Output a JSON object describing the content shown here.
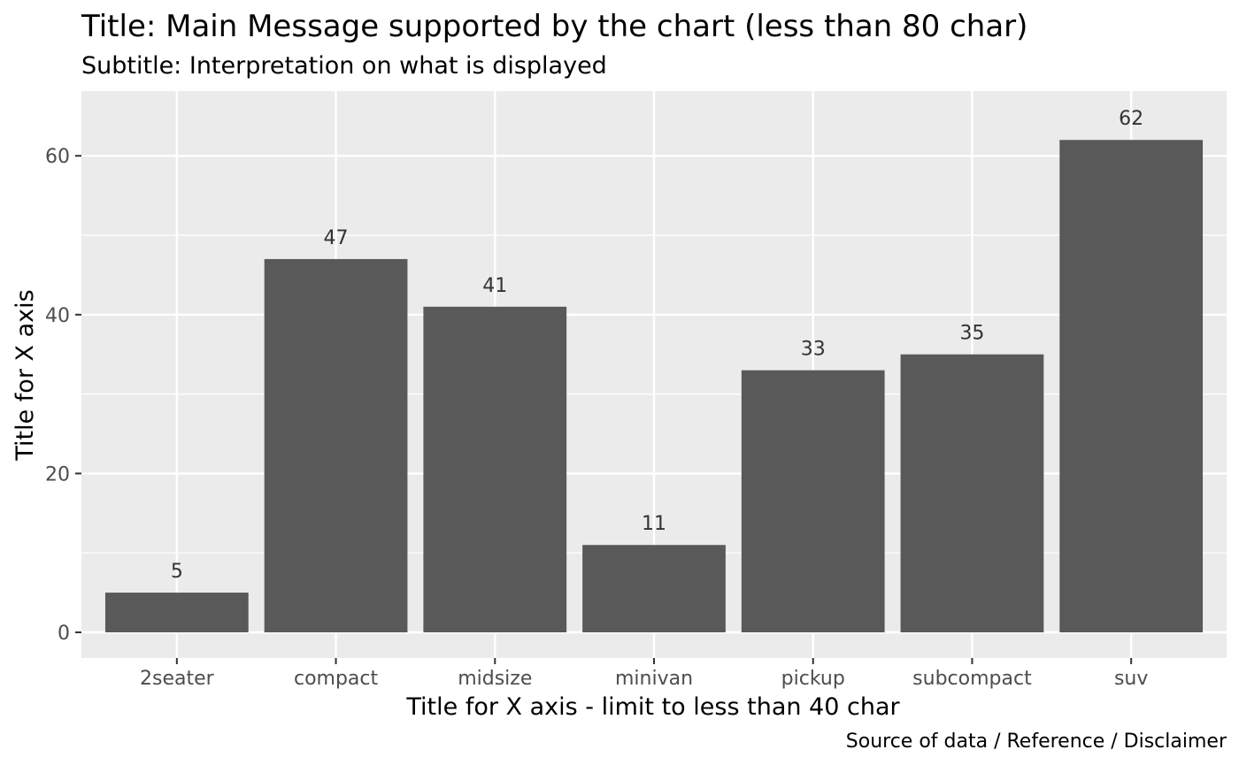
{
  "chart_data": {
    "type": "bar",
    "title": "Title: Main Message supported by the chart (less than 80 char)",
    "subtitle": "Subtitle: Interpretation on what is displayed",
    "xlabel": "Title for X axis - limit to less than 40 char",
    "ylabel": "Title for X axis",
    "caption": "Source of data / Reference / Disclaimer",
    "categories": [
      "2seater",
      "compact",
      "midsize",
      "minivan",
      "pickup",
      "subcompact",
      "suv"
    ],
    "values": [
      5,
      47,
      41,
      11,
      33,
      35,
      62
    ],
    "ylim": [
      0,
      68.5
    ],
    "yticks": [
      0,
      20,
      40,
      60
    ],
    "grid": true,
    "legend": "none",
    "colors": {
      "bar": "#595959",
      "panel": "#ebebeb",
      "grid": "#ffffff",
      "tick_mark": "#333333"
    }
  }
}
